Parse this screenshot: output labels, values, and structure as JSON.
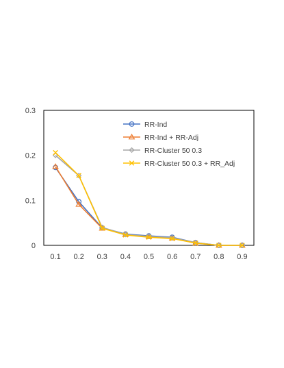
{
  "chart_data": {
    "type": "line",
    "title": "",
    "xlabel": "",
    "ylabel": "",
    "x": [
      "0.1",
      "0.2",
      "0.3",
      "0.4",
      "0.5",
      "0.6",
      "0.7",
      "0.8",
      "0.9"
    ],
    "ylim": [
      0,
      0.3
    ],
    "yticks": [
      "0",
      "0.1",
      "0.2",
      "0.3"
    ],
    "grid": false,
    "legend_position": "top-right",
    "series": [
      {
        "name": "RR-Ind",
        "color": "#4472C4",
        "marker": "circle",
        "values": [
          0.173,
          0.097,
          0.039,
          0.025,
          0.021,
          0.018,
          0.006,
          0.0,
          0.0
        ]
      },
      {
        "name": "RR-Ind + RR-Adj",
        "color": "#ED7D31",
        "marker": "triangle",
        "values": [
          0.175,
          0.091,
          0.038,
          0.024,
          0.019,
          0.016,
          0.005,
          0.0,
          0.0
        ]
      },
      {
        "name": "RR-Cluster 50 0.3",
        "color": "#A5A5A5",
        "marker": "diamond",
        "values": [
          0.2,
          0.155,
          0.04,
          0.024,
          0.02,
          0.017,
          0.006,
          0.0,
          0.0
        ]
      },
      {
        "name": "RR-Cluster 50 0.3 + RR_Adj",
        "color": "#FFC000",
        "marker": "x",
        "values": [
          0.206,
          0.155,
          0.038,
          0.023,
          0.018,
          0.015,
          0.005,
          0.0,
          0.0
        ]
      }
    ]
  }
}
